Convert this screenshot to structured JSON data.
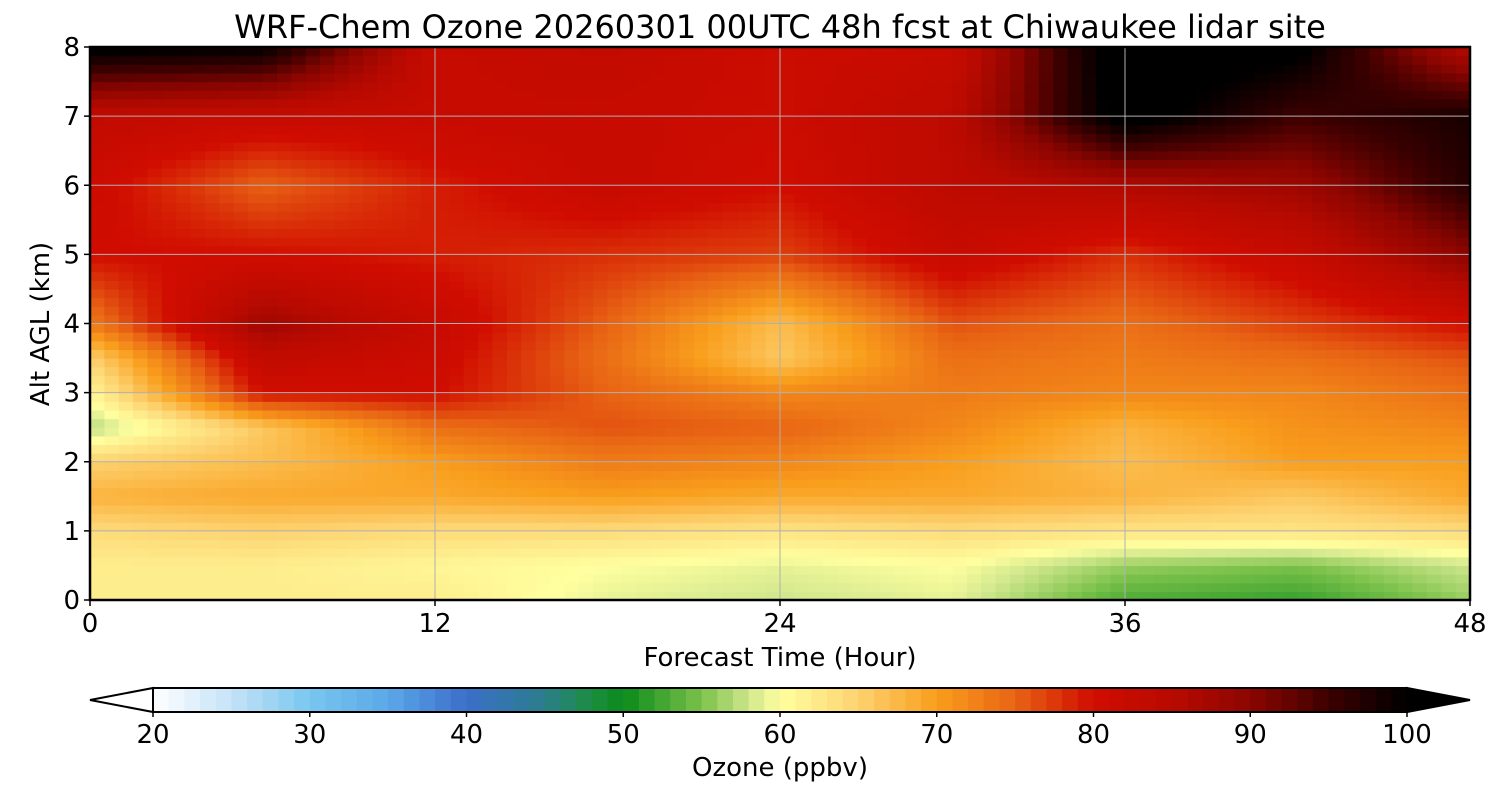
{
  "chart_data": {
    "type": "heatmap",
    "title": "WRF-Chem Ozone  20260301 00UTC 48h fcst at Chiwaukee lidar site",
    "xlabel": "Forecast Time (Hour)",
    "ylabel": "Alt AGL (km)",
    "xlim": [
      0,
      48
    ],
    "ylim": [
      0,
      8
    ],
    "xticks": [
      "0",
      "12",
      "24",
      "36",
      "48"
    ],
    "yticks": [
      "0",
      "1",
      "2",
      "3",
      "4",
      "5",
      "6",
      "7",
      "8"
    ],
    "grid": true,
    "x": [
      0,
      6,
      12,
      18,
      24,
      30,
      36,
      42,
      48
    ],
    "y": [
      0,
      0.5,
      1,
      1.5,
      2,
      2.5,
      3,
      3.5,
      4,
      5,
      6,
      7,
      8
    ],
    "z": [
      [
        62,
        62,
        62,
        59,
        58,
        59,
        53,
        52,
        56
      ],
      [
        62,
        62,
        61,
        60,
        59,
        60,
        56,
        55,
        58
      ],
      [
        64,
        65,
        64,
        64,
        63,
        64,
        63,
        63,
        64
      ],
      [
        68,
        69,
        69,
        70,
        69,
        69,
        68,
        66,
        69
      ],
      [
        65,
        67,
        70,
        73,
        72,
        70,
        67,
        70,
        70
      ],
      [
        57,
        66,
        74,
        76,
        75,
        72,
        68,
        71,
        72
      ],
      [
        61,
        80,
        80,
        75,
        72,
        73,
        72,
        72,
        74
      ],
      [
        65,
        83,
        81,
        74,
        66,
        74,
        73,
        74,
        76
      ],
      [
        73,
        88,
        82,
        75,
        67,
        76,
        74,
        77,
        80
      ],
      [
        80,
        80,
        79,
        78,
        77,
        82,
        78,
        82,
        90
      ],
      [
        81,
        75,
        79,
        82,
        80,
        84,
        86,
        88,
        97
      ],
      [
        83,
        82,
        82,
        82,
        81,
        84,
        102,
        95,
        98
      ],
      [
        101,
        100,
        82,
        83,
        81,
        82,
        103,
        101,
        85
      ]
    ],
    "colorbar": {
      "label": "Ozone  (ppbv)",
      "min": 20,
      "max": 100,
      "ticks": [
        "20",
        "30",
        "40",
        "50",
        "60",
        "70",
        "80",
        "90",
        "100"
      ],
      "extend": "both",
      "stops": [
        [
          20,
          "#ffffff"
        ],
        [
          25,
          "#c5e3f7"
        ],
        [
          30,
          "#78c6ef"
        ],
        [
          35,
          "#5ba8e8"
        ],
        [
          40,
          "#3b6ec9"
        ],
        [
          45,
          "#2b7d8c"
        ],
        [
          48,
          "#1b8e40"
        ],
        [
          50,
          "#0a8a1a"
        ],
        [
          55,
          "#7cc24b"
        ],
        [
          58,
          "#cfe68c"
        ],
        [
          60,
          "#ffffa0"
        ],
        [
          65,
          "#fdd270"
        ],
        [
          70,
          "#f99e1c"
        ],
        [
          75,
          "#e86414"
        ],
        [
          80,
          "#d00c00"
        ],
        [
          85,
          "#b80a00"
        ],
        [
          90,
          "#8c0500"
        ],
        [
          95,
          "#3d0000"
        ],
        [
          100,
          "#000000"
        ]
      ]
    }
  }
}
